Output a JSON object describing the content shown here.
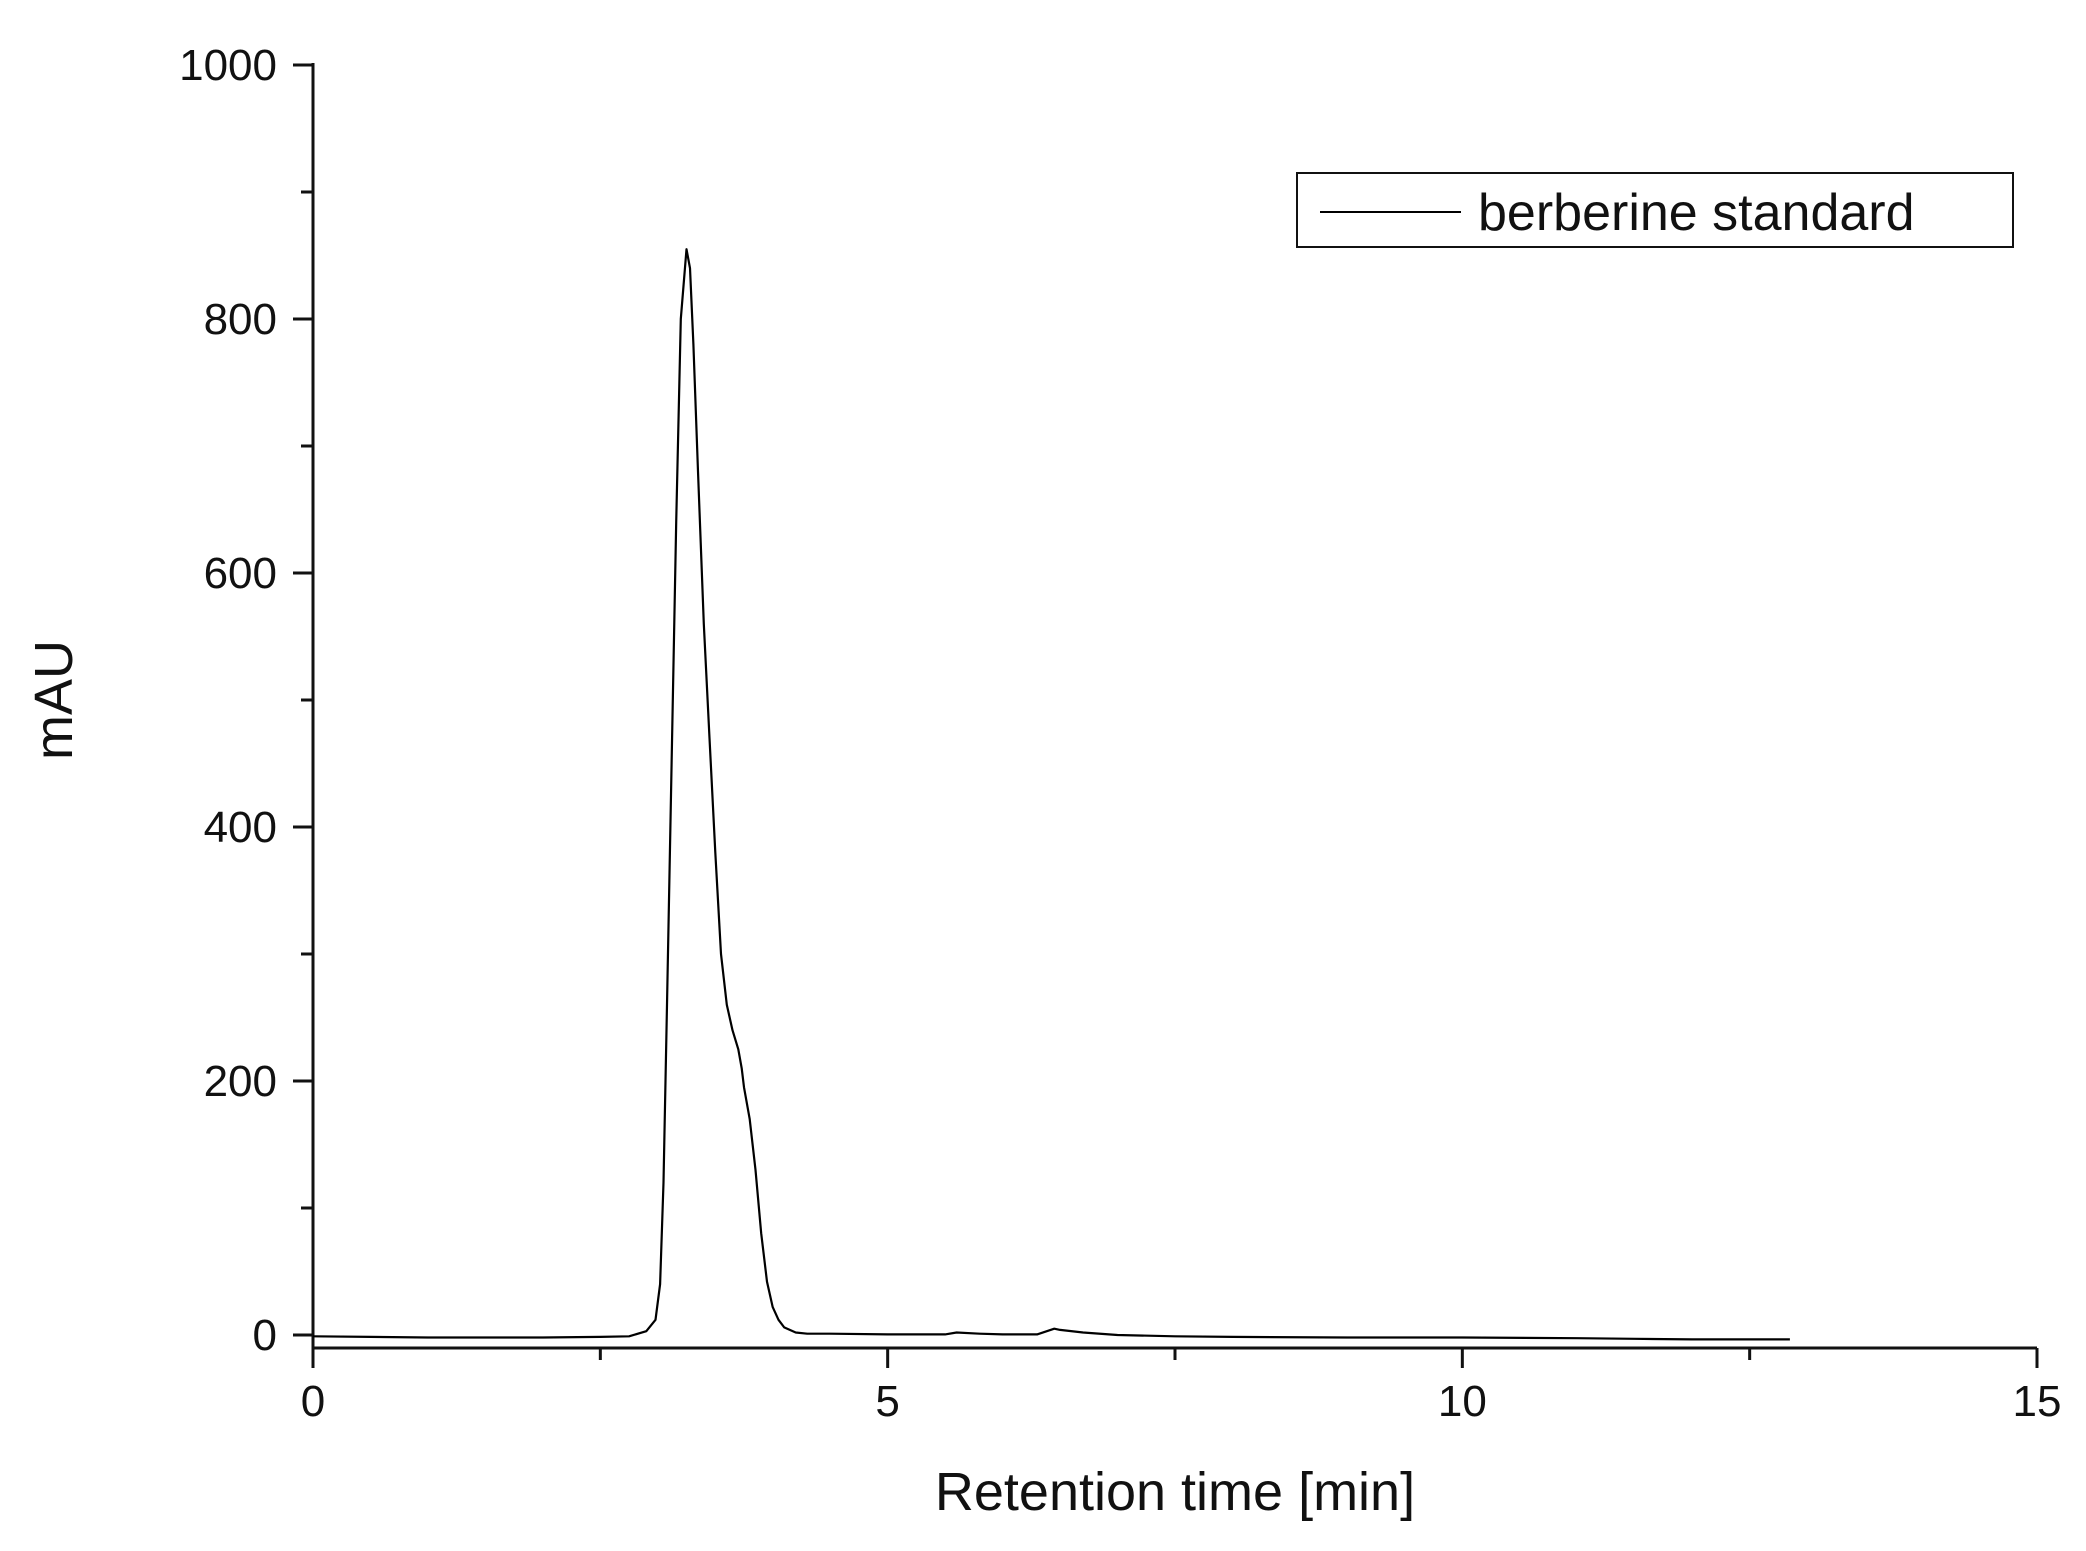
{
  "chart_data": {
    "type": "line",
    "title": "",
    "xlabel": "Retention time [min]",
    "ylabel": "mAU",
    "xlim": [
      0,
      15
    ],
    "ylim": [
      -10,
      1000
    ],
    "x_ticks": [
      0,
      5,
      10,
      15
    ],
    "x_tick_labels": [
      "0",
      "5",
      "10",
      "15"
    ],
    "y_ticks": [
      0,
      200,
      400,
      600,
      800,
      1000
    ],
    "y_tick_labels": [
      "0",
      "200",
      "400",
      "600",
      "800",
      "1000"
    ],
    "grid": false,
    "legend": {
      "position": "top-right",
      "entries": [
        "berberine standard"
      ]
    },
    "line_color": "#000000",
    "series": [
      {
        "name": "berberine standard",
        "x": [
          0,
          0.5,
          1.0,
          1.5,
          2.0,
          2.5,
          2.75,
          2.9,
          2.98,
          3.02,
          3.05,
          3.08,
          3.12,
          3.16,
          3.2,
          3.25,
          3.28,
          3.31,
          3.35,
          3.4,
          3.45,
          3.5,
          3.55,
          3.6,
          3.65,
          3.7,
          3.73,
          3.75,
          3.8,
          3.85,
          3.9,
          3.95,
          4.0,
          4.05,
          4.1,
          4.2,
          4.3,
          4.5,
          5.0,
          5.5,
          5.6,
          5.8,
          6.0,
          6.3,
          6.45,
          6.5,
          6.7,
          7.0,
          7.5,
          8.0,
          9.0,
          10.0,
          11.0,
          11.5,
          12.0,
          12.5,
          12.85
        ],
        "y": [
          -1,
          -1.5,
          -2,
          -2,
          -2,
          -1.5,
          -1,
          3,
          12,
          40,
          120,
          260,
          450,
          640,
          800,
          855,
          840,
          780,
          680,
          560,
          470,
          380,
          300,
          260,
          240,
          225,
          210,
          195,
          170,
          130,
          80,
          42,
          22,
          12,
          6,
          2,
          1,
          1,
          0.5,
          0.5,
          2,
          1,
          0.5,
          0.5,
          5,
          4,
          2,
          0,
          -1,
          -1.5,
          -2,
          -2,
          -2.5,
          -3,
          -3.5,
          -3.5,
          -3.5
        ]
      }
    ]
  }
}
